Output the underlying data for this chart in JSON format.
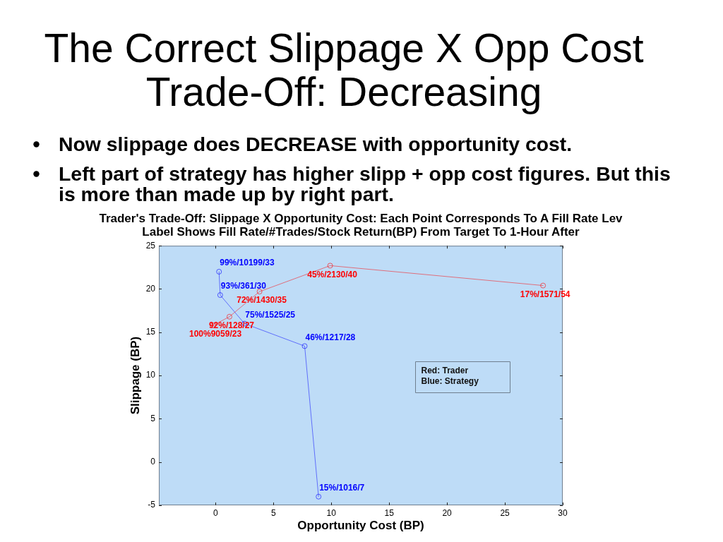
{
  "chart_data": {
    "type": "line",
    "title": "The Correct Slippage X Opp Cost Trade-Off: Decreasing",
    "subtitle": "Trader's Trade-Off: Slippage X Opportunity Cost: Each Point Corresponds To A Fill Rate Lev\nLabel Shows Fill Rate/#Trades/Stock Return(BP) From Target To 1-Hour After",
    "xlabel": "Opportunity Cost (BP)",
    "ylabel": "Slippage (BP)",
    "annotations": [
      "Now slippage does DECREASE with opportunity cost.",
      "Left part of strategy has higher slipp + opp cost figures. But this is more than made up by right part.",
      "Red: Trader",
      "Blue: Strategy",
      {
        "text": "100%9059/23",
        "x": -0.2,
        "y": 15.8
      },
      {
        "text": "92%/128/27",
        "x": 1.2,
        "y": 16.8
      },
      {
        "text": "72%/1430/35",
        "x": 3.8,
        "y": 19.7
      },
      {
        "text": "45%/2130/40",
        "x": 9.9,
        "y": 22.7
      },
      {
        "text": "17%/1571/54",
        "x": 28.3,
        "y": 20.4
      },
      {
        "text": "99%/10199/33",
        "x": 0.3,
        "y": 22.0
      },
      {
        "text": "93%/361/30",
        "x": 0.4,
        "y": 19.3
      },
      {
        "text": "75%/1525/25",
        "x": 2.5,
        "y": 16.0
      },
      {
        "text": "46%/1217/28",
        "x": 7.7,
        "y": 13.4
      },
      {
        "text": "15%/1016/7",
        "x": 8.9,
        "y": -4.0
      }
    ],
    "series": [
      {
        "color": "#ff0000",
        "x": [
          -0.2,
          1.2,
          3.8,
          9.9,
          28.3
        ],
        "values": [
          15.8,
          16.8,
          19.7,
          22.7,
          20.4
        ]
      },
      {
        "color": "#0000ff",
        "x": [
          0.3,
          0.4,
          2.5,
          7.7,
          8.9
        ],
        "values": [
          22.0,
          19.3,
          16.0,
          13.4,
          -4.0
        ]
      }
    ],
    "xlim": [
      -4.9,
      30
    ],
    "xticks": [
      0,
      5,
      10,
      15,
      20,
      25,
      30
    ],
    "ylim": [
      -5,
      25
    ],
    "yticks": [
      -5,
      0,
      5,
      10,
      15,
      20,
      25
    ],
    "grid": false,
    "legend": false,
    "marker": "circle",
    "line_style": "solid"
  }
}
